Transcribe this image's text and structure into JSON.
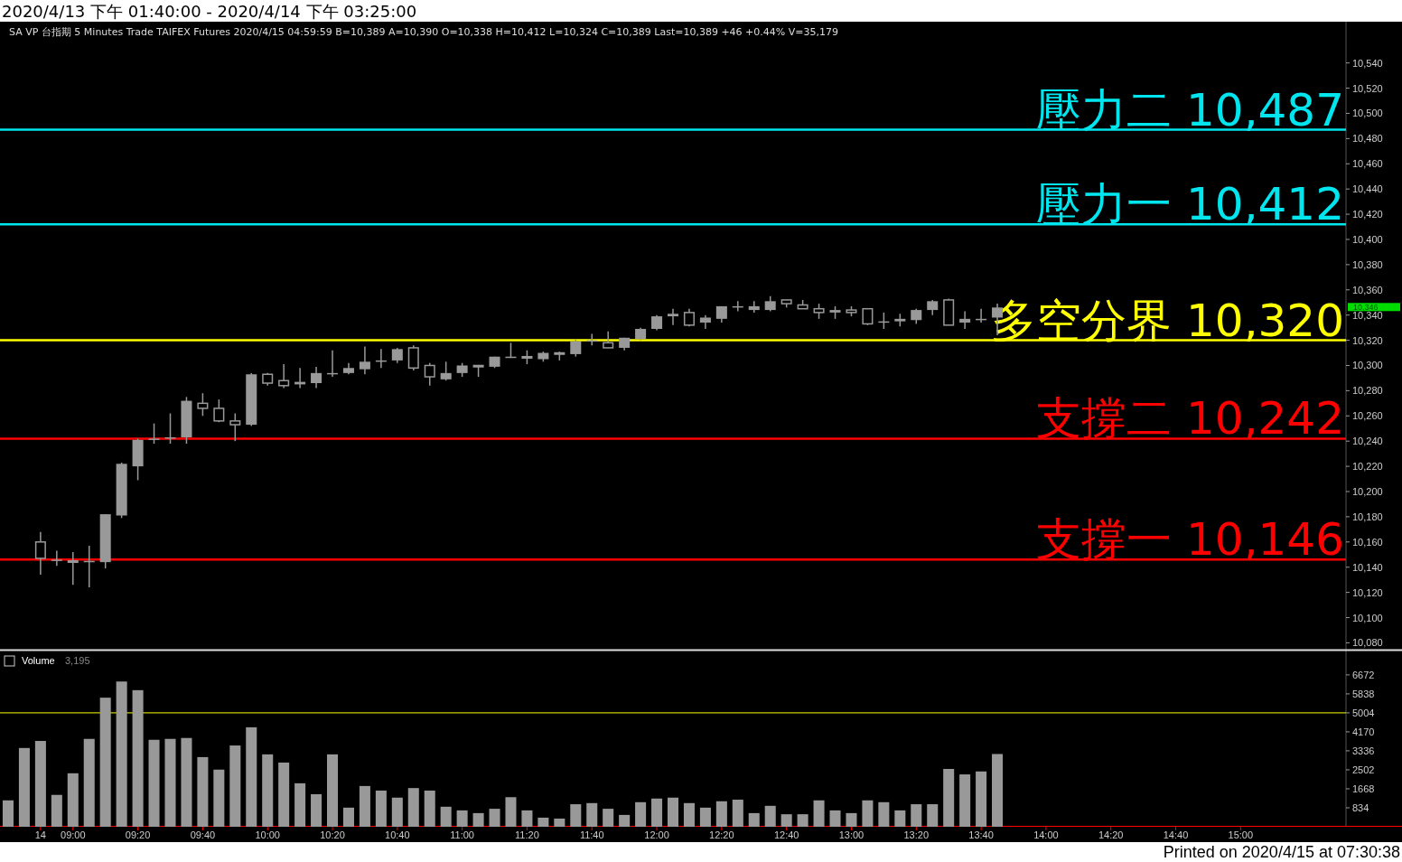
{
  "chart_data": [
    {
      "type": "candlestick",
      "title": "2020/4/13 下午 01:40:00 - 2020/4/14 下午 03:25:00",
      "color": "#999999",
      "categories": [
        null,
        null,
        null,
        null,
        null,
        null,
        null,
        null,
        null,
        null,
        null,
        null,
        null,
        null,
        null,
        null,
        null,
        null,
        null,
        null,
        null,
        null,
        null,
        null,
        null,
        null,
        null,
        null,
        null,
        null,
        null,
        null,
        null,
        null,
        null,
        null,
        null,
        null,
        null,
        null,
        null,
        null,
        null,
        null,
        null,
        null,
        null,
        null,
        null,
        null,
        null,
        null,
        null,
        null,
        null,
        null,
        null,
        null,
        null,
        null,
        null,
        null,
        null,
        null,
        null,
        null,
        null,
        null,
        null,
        null,
        null,
        null,
        null,
        null,
        null,
        null,
        null,
        null,
        null,
        null,
        null,
        null,
        null
      ],
      "ohlc": [
        null,
        null,
        [
          10160,
          10168,
          10134,
          10147
        ],
        [
          10146,
          10153,
          10141,
          10146
        ],
        [
          10145,
          10152,
          10126,
          10144
        ],
        [
          10144,
          10157,
          10124,
          10145
        ],
        [
          10144,
          10182,
          10139,
          10182
        ],
        [
          10181,
          10223,
          10179,
          10222
        ],
        [
          10220,
          10242,
          10209,
          10241
        ],
        [
          10241,
          10254,
          10238,
          10242
        ],
        [
          10242,
          10262,
          10238,
          10243
        ],
        [
          10243,
          10275,
          10238,
          10272
        ],
        [
          10270,
          10278,
          10260,
          10266
        ],
        [
          10266,
          10273,
          10255,
          10256
        ],
        [
          10256,
          10262,
          10240,
          10253
        ],
        [
          10253,
          10294,
          10252,
          10293
        ],
        [
          10293,
          10294,
          10284,
          10286
        ],
        [
          10288,
          10301,
          10282,
          10284
        ],
        [
          10285,
          10298,
          10282,
          10287
        ],
        [
          10286,
          10299,
          10282,
          10294
        ],
        [
          10294,
          10312,
          10291,
          10294
        ],
        [
          10294,
          10302,
          10293,
          10298
        ],
        [
          10297,
          10315,
          10293,
          10303
        ],
        [
          10303,
          10313,
          10298,
          10304
        ],
        [
          10304,
          10314,
          10302,
          10313
        ],
        [
          10314,
          10316,
          10296,
          10298
        ],
        [
          10300,
          10302,
          10284,
          10291
        ],
        [
          10289,
          10303,
          10288,
          10294
        ],
        [
          10294,
          10302,
          10291,
          10300
        ],
        [
          10300,
          10300,
          10291,
          10299
        ],
        [
          10299,
          10307,
          10298,
          10307
        ],
        [
          10307,
          10318,
          10306,
          10307
        ],
        [
          10307,
          10312,
          10301,
          10306
        ],
        [
          10305,
          10311,
          10303,
          10310
        ],
        [
          10310,
          10311,
          10304,
          10309
        ],
        [
          10309,
          10321,
          10307,
          10319
        ],
        [
          10320,
          10325,
          10316,
          10320
        ],
        [
          10318,
          10327,
          10314,
          10314
        ],
        [
          10314,
          10322,
          10312,
          10322
        ],
        [
          10321,
          10330,
          10320,
          10329
        ],
        [
          10329,
          10340,
          10328,
          10339
        ],
        [
          10339,
          10345,
          10332,
          10341
        ],
        [
          10342,
          10345,
          10331,
          10332
        ],
        [
          10334,
          10340,
          10329,
          10338
        ],
        [
          10337,
          10347,
          10334,
          10347
        ],
        [
          10347,
          10351,
          10343,
          10347
        ],
        [
          10344,
          10351,
          10342,
          10347
        ],
        [
          10344,
          10355,
          10343,
          10351
        ],
        [
          10352,
          10352,
          10346,
          10349
        ],
        [
          10348,
          10352,
          10345,
          10345
        ],
        [
          10345,
          10349,
          10337,
          10342
        ],
        [
          10342,
          10347,
          10337,
          10344
        ],
        [
          10344,
          10347,
          10339,
          10342
        ],
        [
          10345,
          10345,
          10332,
          10333
        ],
        [
          10334,
          10342,
          10329,
          10335
        ],
        [
          10335,
          10341,
          10331,
          10337
        ],
        [
          10336,
          10345,
          10333,
          10344
        ],
        [
          10344,
          10352,
          10340,
          10351
        ],
        [
          10352,
          10353,
          10332,
          10332
        ],
        [
          10334,
          10343,
          10329,
          10337
        ],
        [
          10337,
          10345,
          10334,
          10337
        ],
        [
          10338,
          10349,
          10324,
          10346
        ],
        null,
        null,
        null,
        null,
        null,
        null,
        null,
        null,
        null,
        null,
        null,
        null,
        null,
        null,
        null,
        null,
        null,
        null,
        null,
        null,
        null
      ],
      "ylim": [
        10076,
        10572
      ],
      "yticks": [
        {
          "value": 10080,
          "label": "10,080"
        },
        {
          "value": 10100,
          "label": "10,100"
        },
        {
          "value": 10120,
          "label": "10,120"
        },
        {
          "value": 10140,
          "label": "10,140"
        },
        {
          "value": 10160,
          "label": "10,160"
        },
        {
          "value": 10180,
          "label": "10,180"
        },
        {
          "value": 10200,
          "label": "10,200"
        },
        {
          "value": 10220,
          "label": "10,220"
        },
        {
          "value": 10240,
          "label": "10,240"
        },
        {
          "value": 10260,
          "label": "10,260"
        },
        {
          "value": 10280,
          "label": "10,280"
        },
        {
          "value": 10300,
          "label": "10,300"
        },
        {
          "value": 10320,
          "label": "10,320"
        },
        {
          "value": 10340,
          "label": "10,340"
        },
        {
          "value": 10360,
          "label": "10,360"
        },
        {
          "value": 10380,
          "label": "10,380"
        },
        {
          "value": 10400,
          "label": "10,400"
        },
        {
          "value": 10420,
          "label": "10,420"
        },
        {
          "value": 10440,
          "label": "10,440"
        },
        {
          "value": 10460,
          "label": "10,460"
        },
        {
          "value": 10480,
          "label": "10,480"
        },
        {
          "value": 10500,
          "label": "10,500"
        },
        {
          "value": 10520,
          "label": "10,520"
        },
        {
          "value": 10540,
          "label": "10,540"
        }
      ],
      "ref_lines": [
        {
          "axis": "y",
          "value": 10487,
          "label": "壓力二 10,487",
          "color": "#00e5ee"
        },
        {
          "axis": "y",
          "value": 10412,
          "label": "壓力一 10,412",
          "color": "#00e5ee"
        },
        {
          "axis": "y",
          "value": 10320,
          "label": "多空分界 10,320",
          "color": "#ffff00"
        },
        {
          "axis": "y",
          "value": 10242,
          "label": "支撐二 10,242",
          "color": "#ff0000"
        },
        {
          "axis": "y",
          "value": 10146,
          "label": "支撐一 10,146",
          "color": "#ff0000"
        }
      ],
      "annotations": [
        "SA  VP  台指期  5 Minutes  Trade  TAIFEX  Futures  2020/4/15  04:59:59  B=10,389  A=10,390  O=10,338  H=10,412  L=10,324  C=10,389  Last=10,389  +46  +0.44%  V=35,179",
        "10,346"
      ],
      "tick_labels": "y"
    },
    {
      "type": "bar",
      "title": "Volume",
      "subtitle": "3,195",
      "color": "#999999",
      "categories": [
        null,
        null,
        "14",
        null,
        "09:00",
        null,
        null,
        null,
        "09:20",
        null,
        null,
        null,
        "09:40",
        null,
        null,
        null,
        "10:00",
        null,
        null,
        null,
        "10:20",
        null,
        null,
        null,
        "10:40",
        null,
        null,
        null,
        "11:00",
        null,
        null,
        null,
        "11:20",
        null,
        null,
        null,
        "11:40",
        null,
        null,
        null,
        "12:00",
        null,
        null,
        null,
        "12:20",
        null,
        null,
        null,
        "12:40",
        null,
        null,
        null,
        "13:00",
        null,
        null,
        null,
        "13:20",
        null,
        null,
        null,
        "13:40",
        null,
        null,
        null,
        "14:00",
        null,
        null,
        null,
        "14:20",
        null,
        null,
        null,
        "14:40",
        null,
        null,
        null,
        "15:00",
        null,
        null,
        null,
        null,
        null,
        null
      ],
      "values": [
        1160,
        3460,
        3770,
        1400,
        2350,
        3860,
        5670,
        6380,
        6000,
        3820,
        3860,
        3900,
        3060,
        2510,
        3570,
        4370,
        3180,
        2820,
        1910,
        1430,
        3180,
        840,
        1790,
        1590,
        1280,
        1700,
        1590,
        880,
        720,
        600,
        790,
        1300,
        720,
        400,
        360,
        990,
        1040,
        790,
        520,
        1080,
        1240,
        1280,
        1040,
        840,
        1120,
        1190,
        600,
        920,
        550,
        550,
        1160,
        720,
        600,
        1160,
        1080,
        720,
        990,
        990,
        2540,
        2300,
        2430,
        3195,
        null,
        null,
        null,
        null,
        null,
        null,
        null,
        null,
        null,
        null,
        null,
        null,
        null,
        null,
        null,
        null,
        null,
        null,
        null,
        null,
        null
      ],
      "ylim": [
        0,
        7660
      ],
      "yticks": [
        834,
        1668,
        2502,
        3336,
        4170,
        5004,
        5838,
        6672
      ],
      "ref_lines": [
        {
          "axis": "y",
          "value": 5004,
          "color": "#ffff00"
        }
      ],
      "annotations": [
        "Printed on 2020/4/15 at 07:30:38"
      ]
    }
  ]
}
